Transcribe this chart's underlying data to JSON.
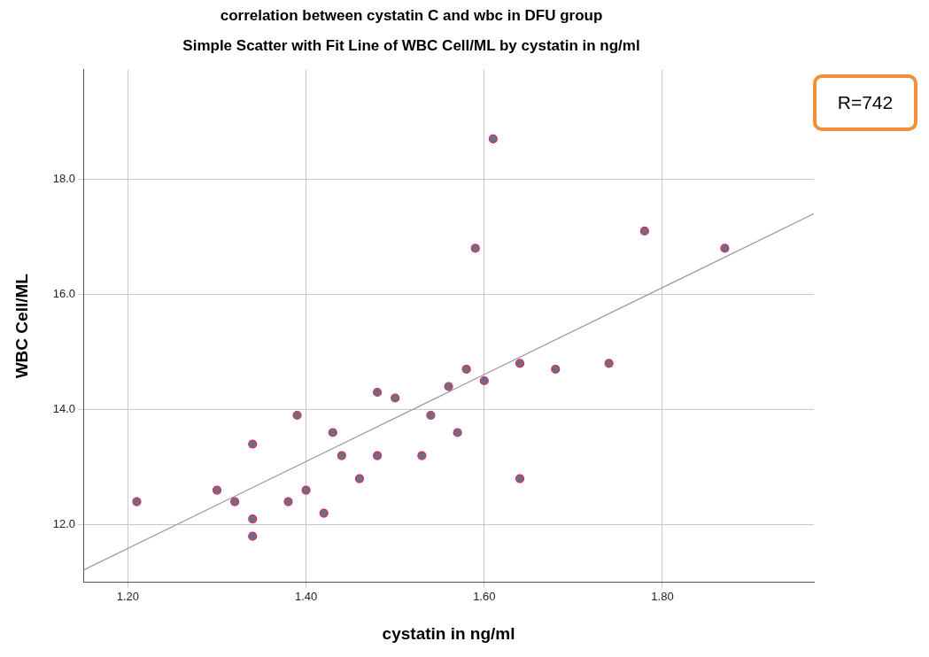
{
  "chart_data": {
    "type": "scatter",
    "title": "correlation between cystatin C and wbc in DFU group",
    "subtitle": "Simple Scatter with Fit Line of WBC Cell/ML by cystatin in ng/ml",
    "xlabel": "cystatin in ng/ml",
    "ylabel": "WBC Cell/ML",
    "xlim": [
      1.15,
      1.97
    ],
    "ylim": [
      11.0,
      19.9
    ],
    "xticks": [
      {
        "value": 1.2,
        "label": "1.20"
      },
      {
        "value": 1.4,
        "label": "1.40"
      },
      {
        "value": 1.6,
        "label": "1.60"
      },
      {
        "value": 1.8,
        "label": "1.80"
      }
    ],
    "yticks": [
      {
        "value": 12,
        "label": "12.0"
      },
      {
        "value": 14,
        "label": "14.0"
      },
      {
        "value": 16,
        "label": "16.0"
      },
      {
        "value": 18,
        "label": "18.0"
      }
    ],
    "grid": true,
    "annotations": [
      "R=742"
    ],
    "series": [
      {
        "marker": "circle",
        "color": "#6e6e80",
        "x": [
          1.21,
          1.3,
          1.32,
          1.34,
          1.34,
          1.34,
          1.38,
          1.39,
          1.4,
          1.42,
          1.43,
          1.44,
          1.46,
          1.48,
          1.48,
          1.5,
          1.53,
          1.54,
          1.56,
          1.57,
          1.58,
          1.59,
          1.6,
          1.61,
          1.64,
          1.64,
          1.68,
          1.74,
          1.78,
          1.87
        ],
        "values": [
          12.4,
          12.6,
          12.4,
          13.4,
          12.1,
          11.8,
          12.4,
          13.9,
          12.6,
          12.2,
          13.6,
          13.2,
          12.8,
          14.3,
          13.2,
          14.2,
          13.2,
          13.9,
          14.4,
          13.6,
          14.7,
          16.8,
          14.5,
          18.7,
          14.8,
          12.8,
          14.7,
          14.8,
          17.1,
          16.8
        ]
      },
      {
        "type": "line",
        "color": "#999999",
        "x": [
          1.15,
          1.97
        ],
        "values": [
          11.21,
          17.4
        ]
      }
    ]
  }
}
